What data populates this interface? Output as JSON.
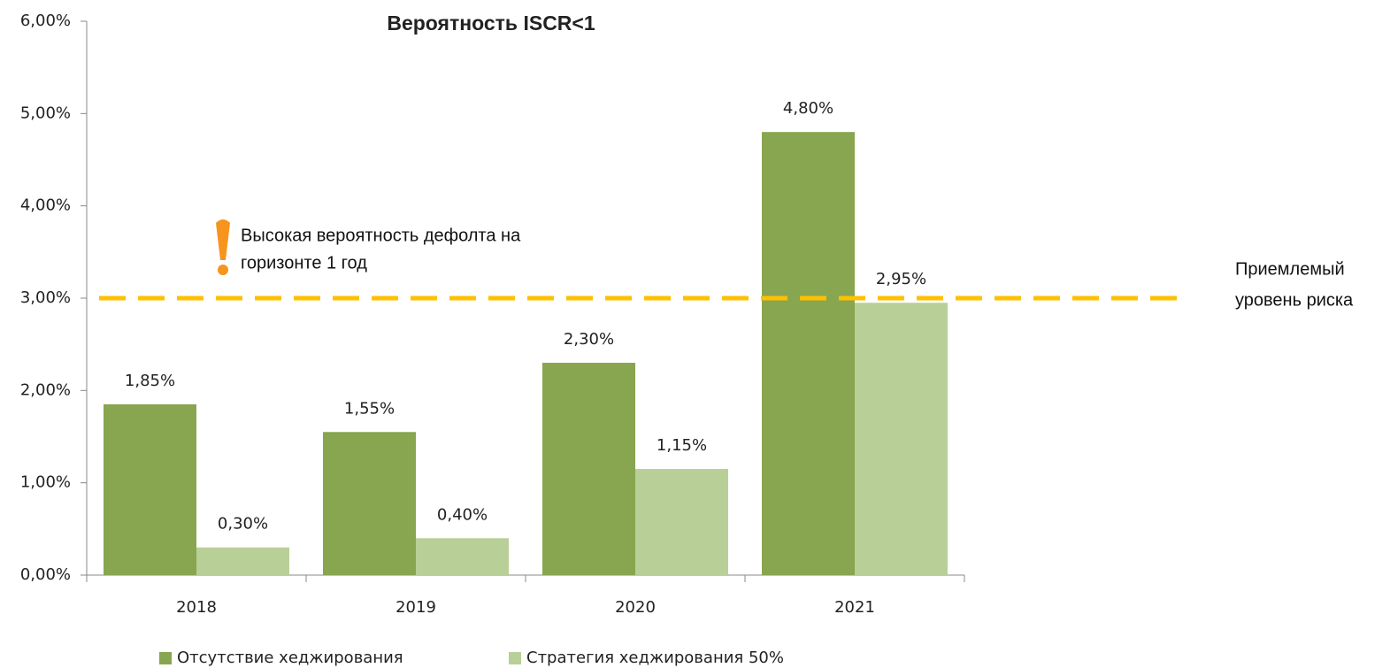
{
  "chart_data": {
    "type": "bar",
    "title": "Вероятность ISCR<1",
    "categories": [
      "2018",
      "2019",
      "2020",
      "2021"
    ],
    "series": [
      {
        "name": "Отсутствие хеджирования",
        "color": "#88a54f",
        "values": [
          1.85,
          1.55,
          2.3,
          4.8
        ],
        "value_labels": [
          "1,85%",
          "1,55%",
          "2,30%",
          "4,80%"
        ]
      },
      {
        "name": "Стратегия хеджирования 50%",
        "color": "#b9cf98",
        "values": [
          0.3,
          0.4,
          1.15,
          2.95
        ],
        "value_labels": [
          "0,30%",
          "0,40%",
          "1,15%",
          "2,95%"
        ]
      }
    ],
    "ylim": [
      0,
      6
    ],
    "yticks": [
      {
        "value": 0,
        "label": "0,00%"
      },
      {
        "value": 1,
        "label": "1,00%"
      },
      {
        "value": 2,
        "label": "2,00%"
      },
      {
        "value": 3,
        "label": "3,00%"
      },
      {
        "value": 4,
        "label": "4,00%"
      },
      {
        "value": 5,
        "label": "5,00%"
      },
      {
        "value": 6,
        "label": "6,00%"
      }
    ],
    "grid": false,
    "reference_line": {
      "value": 3,
      "color": "#ffc000",
      "label": [
        "Приемлемый",
        "уровень риска"
      ]
    },
    "annotation": [
      "Высокая вероятность дефолта на",
      "горизонте 1 год"
    ],
    "legend": "bottom"
  }
}
